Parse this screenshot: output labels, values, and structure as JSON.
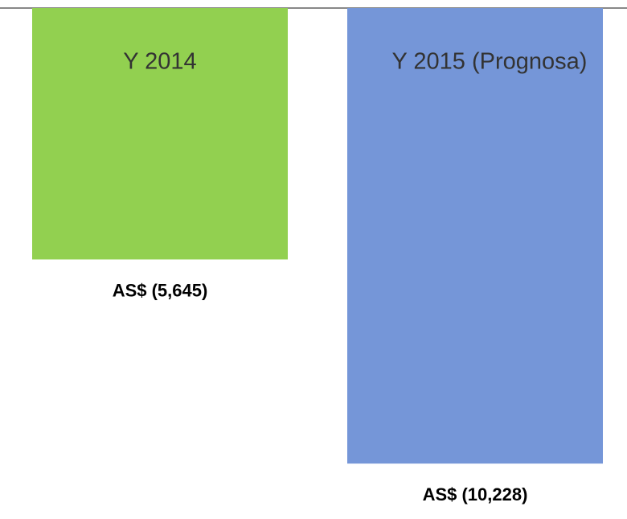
{
  "chart_data": {
    "type": "bar",
    "categories": [
      "Y 2014",
      "Y 2015 (Prognosa)"
    ],
    "values": [
      -5645,
      -10228
    ],
    "value_labels": [
      "AS$ (5,645)",
      "AS$ (10,228)"
    ],
    "colors": [
      "#92d050",
      "#7596d8"
    ],
    "ylim": [
      -11400,
      0
    ]
  }
}
